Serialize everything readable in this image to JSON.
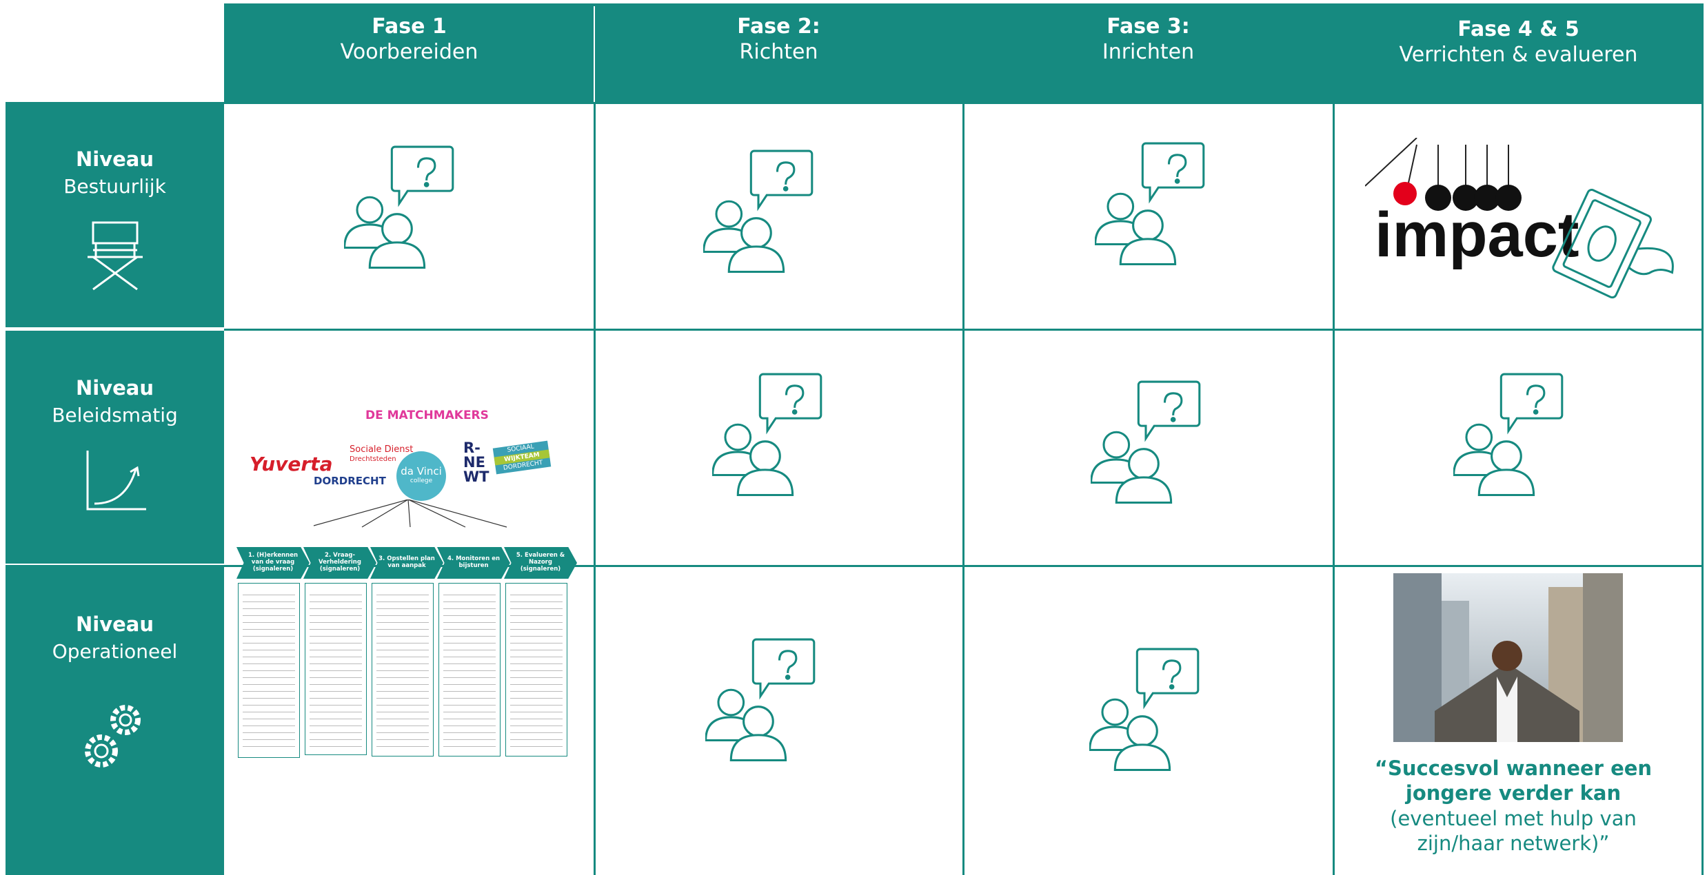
{
  "header": {
    "phases": [
      {
        "title": "Fase 1",
        "subtitle": "Voorbereiden"
      },
      {
        "title": "Fase 2:",
        "subtitle": "Richten"
      },
      {
        "title": "Fase 3:",
        "subtitle": "Inrichten"
      },
      {
        "title": "Fase 4 & 5",
        "subtitle": "Verrichten & evalueren"
      }
    ]
  },
  "rows": [
    {
      "title": "Niveau",
      "subtitle": "Bestuurlijk"
    },
    {
      "title": "Niveau",
      "subtitle": "Beleidsmatig"
    },
    {
      "title": "Niveau",
      "subtitle": "Operationeel"
    }
  ],
  "cells": {
    "impact_logo": "impact",
    "partner_logos": [
      "Yuverta",
      "Sociale Dienst",
      "Drechtsteden",
      "DORDRECHT",
      "da Vinci",
      "college",
      "DE MATCHMAKERS",
      "R-",
      "NE",
      "WT",
      "SOCIAAL",
      "WIJKTEAM",
      "DORDRECHT"
    ],
    "process_steps": [
      "1. (H)erkennen van de vraag (signaleren)",
      "2. Vraag-Verheldering (signaleren)",
      "3. Opstellen plan van aanpak",
      "4. Monitoren en bijsturen",
      "5. Evalueren & Nazorg (signaleren)"
    ],
    "quote": {
      "bold": "“Succesvol wanneer een jongere verder kan",
      "normal": "(eventueel met hulp van zijn/haar netwerk)”"
    }
  }
}
